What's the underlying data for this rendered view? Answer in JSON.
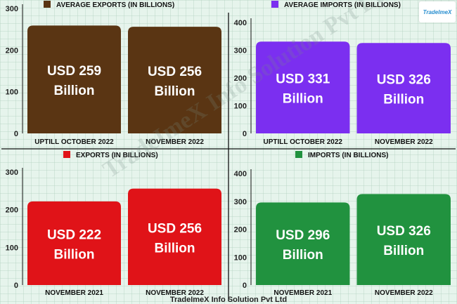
{
  "brand": {
    "logo_text": "TradeImeX"
  },
  "watermark": "TradeImeX Info Solution Pvt Ltd",
  "footer": "TradeImeX Info Solution Pvt Ltd",
  "chart_data": [
    {
      "type": "bar",
      "legend": "AVERAGE EXPORTS (IN BILLIONS)",
      "color": "#5a3513",
      "categories": [
        "UPTILL OCTOBER 2022",
        "NOVEMBER 2022"
      ],
      "values": [
        259,
        256
      ],
      "value_labels": [
        "USD 259\nBillion",
        "USD 256\nBillion"
      ],
      "yticks": [
        0,
        100,
        200,
        300
      ],
      "ylim": [
        0,
        300
      ]
    },
    {
      "type": "bar",
      "legend": "AVERAGE IMPORTS (IN BILLIONS)",
      "color": "#7b2ff0",
      "categories": [
        "UPTILL OCTOBER 2022",
        "NOVEMBER 2022"
      ],
      "values": [
        331,
        326
      ],
      "value_labels": [
        "USD 331\nBillion",
        "USD 326\nBillion"
      ],
      "yticks": [
        0,
        100,
        200,
        300,
        400
      ],
      "ylim": [
        0,
        400
      ]
    },
    {
      "type": "bar",
      "legend": "EXPORTS (IN BILLIONS)",
      "color": "#e01318",
      "categories": [
        "NOVEMBER 2021",
        "NOVEMBER 2022"
      ],
      "values": [
        222,
        256
      ],
      "value_labels": [
        "USD 222\nBillion",
        "USD 256\nBillion"
      ],
      "yticks": [
        0,
        100,
        200,
        300
      ],
      "ylim": [
        0,
        300
      ]
    },
    {
      "type": "bar",
      "legend": "IMPORTS (IN BILLIONS)",
      "color": "#21923f",
      "categories": [
        "NOVEMBER 2021",
        "NOVEMBER 2022"
      ],
      "values": [
        296,
        326
      ],
      "value_labels": [
        "USD 296\nBillion",
        "USD 326\nBillion"
      ],
      "yticks": [
        0,
        100,
        200,
        300,
        400
      ],
      "ylim": [
        0,
        400
      ]
    }
  ]
}
